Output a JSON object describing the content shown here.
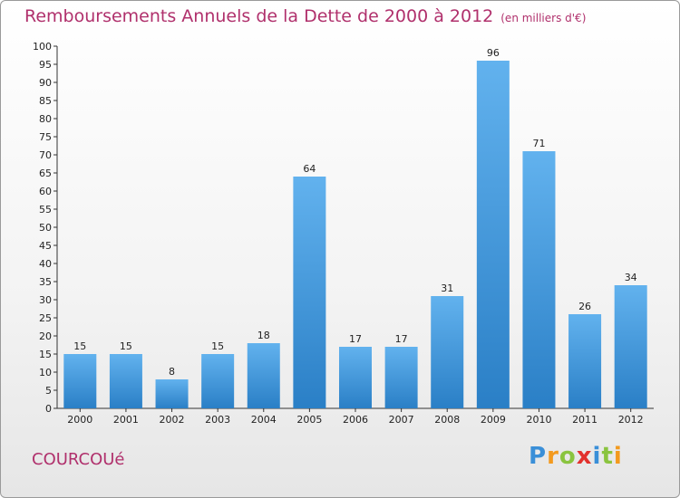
{
  "header": {
    "title": "Remboursements Annuels de la Dette de 2000 à 2012",
    "subtitle": "(en milliers d'€)"
  },
  "commune": "COURCOUé",
  "brand": {
    "letters": [
      "P",
      "r",
      "o",
      "x",
      "i",
      "t",
      "i"
    ],
    "colors": [
      "#3a8fd8",
      "#f39a1e",
      "#8ac43f",
      "#e2312d",
      "#3a8fd8",
      "#8ac43f",
      "#f39a1e"
    ]
  },
  "colors": {
    "bar_top": "#62b2ee",
    "bar_bottom": "#2a7fc6",
    "text": "#b0306c"
  },
  "chart_data": {
    "type": "bar",
    "title": "Remboursements Annuels de la Dette de 2000 à 2012",
    "categories": [
      "2000",
      "2001",
      "2002",
      "2003",
      "2004",
      "2005",
      "2006",
      "2007",
      "2008",
      "2009",
      "2010",
      "2011",
      "2012"
    ],
    "values": [
      15,
      15,
      8,
      15,
      18,
      64,
      17,
      17,
      31,
      96,
      71,
      26,
      34
    ],
    "ylim": [
      0,
      100
    ],
    "ytick_step": 5,
    "grid": false,
    "data_labels": true
  }
}
